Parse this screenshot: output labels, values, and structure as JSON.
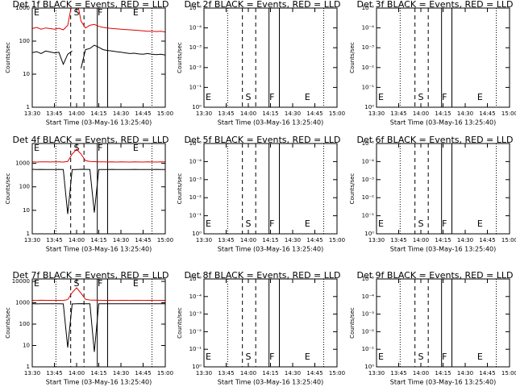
{
  "shared": {
    "xlabel": "Start Time (03-May-16 13:25:40)",
    "ylabel": "Counts/sec",
    "xticks": [
      "13:30",
      "13:45",
      "14:00",
      "14:15",
      "14:30",
      "14:45",
      "15:00"
    ],
    "xlim": [
      "13:30",
      "15:00"
    ],
    "lines": [
      {
        "time": "13:46",
        "style": "dotted"
      },
      {
        "time": "13:56",
        "style": "dashed"
      },
      {
        "time": "14:05",
        "style": "dashed"
      },
      {
        "time": "14:14",
        "style": "solid"
      },
      {
        "time": "14:21",
        "style": "solid"
      },
      {
        "time": "14:51",
        "style": "dotted"
      }
    ],
    "region_labels": [
      {
        "label": "E",
        "time": "13:33"
      },
      {
        "label": "S",
        "time": "14:00"
      },
      {
        "label": "F",
        "time": "14:16"
      },
      {
        "label": "E",
        "time": "14:40"
      }
    ],
    "x": [
      "13:30",
      "13:33",
      "13:36",
      "13:39",
      "13:42",
      "13:45",
      "13:48",
      "13:51",
      "13:54",
      "13:57",
      "14:00",
      "14:03",
      "14:06",
      "14:09",
      "14:12",
      "14:15",
      "14:18",
      "14:21",
      "14:24",
      "14:27",
      "14:30",
      "14:33",
      "14:36",
      "14:39",
      "14:42",
      "14:45",
      "14:48",
      "14:51",
      "14:54",
      "14:57",
      "15:00"
    ]
  },
  "chart_data": [
    {
      "type": "line",
      "title": "Det 1f BLACK = Events, RED = LLD",
      "log_y": true,
      "ylim": [
        1,
        1000
      ],
      "yticks": [
        1,
        10,
        100,
        1000
      ],
      "region_label_side": "top",
      "series": [
        {
          "name": "Events",
          "color": "#000000",
          "values": [
            45,
            48,
            42,
            50,
            47,
            44,
            46,
            20,
            40,
            50,
            null,
            15,
            55,
            60,
            75,
            65,
            55,
            52,
            50,
            48,
            46,
            44,
            42,
            43,
            41,
            40,
            42,
            40,
            39,
            40,
            38
          ]
        },
        {
          "name": "LLD",
          "color": "#e00000",
          "values": [
            240,
            260,
            230,
            250,
            240,
            230,
            245,
            220,
            300,
            1500,
            2000,
            400,
            250,
            300,
            320,
            280,
            260,
            250,
            240,
            235,
            230,
            225,
            220,
            215,
            210,
            205,
            200,
            200,
            195,
            200,
            190
          ]
        }
      ]
    },
    {
      "type": "line",
      "title": "Det 2f BLACK = Events, RED = LLD",
      "log_y": true,
      "ylim": [
        1,
        1e-05
      ],
      "region_label_side": "bottom",
      "series": [],
      "yticks": [
        {
          "value": 1,
          "label": "10⁰"
        },
        {
          "value": 0.1,
          "label": "10⁻¹"
        },
        {
          "value": 0.01,
          "label": "10⁻²"
        },
        {
          "value": 0.001,
          "label": "10⁻³"
        },
        {
          "value": 0.0001,
          "label": "10⁻⁴"
        },
        {
          "value": 1e-05,
          "label": "10⁻⁵"
        }
      ]
    },
    {
      "type": "line",
      "title": "Det 3f BLACK = Events, RED = LLD",
      "log_y": true,
      "ylim": [
        1,
        1e-05
      ],
      "region_label_side": "bottom",
      "series": [],
      "yticks": [
        {
          "value": 1,
          "label": "10⁰"
        },
        {
          "value": 0.1,
          "label": "10⁻¹"
        },
        {
          "value": 0.01,
          "label": "10⁻²"
        },
        {
          "value": 0.001,
          "label": "10⁻³"
        },
        {
          "value": 0.0001,
          "label": "10⁻⁴"
        },
        {
          "value": 1e-05,
          "label": "10⁻⁵"
        }
      ]
    },
    {
      "type": "line",
      "title": "Det 4f BLACK = Events, RED = LLD",
      "log_y": true,
      "ylim": [
        1,
        7000
      ],
      "yticks": [
        1,
        10,
        100,
        1000
      ],
      "region_label_side": "top",
      "series": [
        {
          "name": "Events",
          "color": "#000000",
          "values": [
            560,
            550,
            555,
            550,
            545,
            550,
            552,
            548,
            7,
            540,
            550,
            560,
            555,
            550,
            8,
            545,
            550,
            548,
            552,
            550,
            545,
            548,
            550,
            552,
            548,
            545,
            550,
            548,
            552,
            550,
            548
          ]
        },
        {
          "name": "LLD",
          "color": "#e00000",
          "values": [
            1150,
            1140,
            1160,
            1150,
            1145,
            1150,
            1155,
            1140,
            1200,
            2500,
            4000,
            2500,
            1300,
            1200,
            1180,
            1160,
            1150,
            1145,
            1150,
            1140,
            1150,
            1145,
            1140,
            1150,
            1145,
            1140,
            1150,
            1145,
            1140,
            1150,
            1145
          ]
        }
      ]
    },
    {
      "type": "line",
      "title": "Det 5f BLACK = Events, RED = LLD",
      "log_y": true,
      "ylim": [
        1,
        1e-05
      ],
      "region_label_side": "bottom",
      "series": [],
      "yticks": [
        {
          "value": 1,
          "label": "10⁰"
        },
        {
          "value": 0.1,
          "label": "10⁻¹"
        },
        {
          "value": 0.01,
          "label": "10⁻²"
        },
        {
          "value": 0.001,
          "label": "10⁻³"
        },
        {
          "value": 0.0001,
          "label": "10⁻⁴"
        },
        {
          "value": 1e-05,
          "label": "10⁻⁵"
        }
      ]
    },
    {
      "type": "line",
      "title": "Det 6f BLACK = Events, RED = LLD",
      "log_y": true,
      "ylim": [
        1,
        1e-05
      ],
      "region_label_side": "bottom",
      "series": [],
      "yticks": [
        {
          "value": 1,
          "label": "10⁰"
        },
        {
          "value": 0.1,
          "label": "10⁻¹"
        },
        {
          "value": 0.01,
          "label": "10⁻²"
        },
        {
          "value": 0.001,
          "label": "10⁻³"
        },
        {
          "value": 0.0001,
          "label": "10⁻⁴"
        },
        {
          "value": 1e-05,
          "label": "10⁻⁵"
        }
      ]
    },
    {
      "type": "line",
      "title": "Det 7f BLACK = Events, RED = LLD",
      "log_y": true,
      "ylim": [
        1,
        13000
      ],
      "yticks": [
        1,
        10,
        100,
        1000,
        10000
      ],
      "region_label_side": "top",
      "series": [
        {
          "name": "Events",
          "color": "#000000",
          "values": [
            900,
            890,
            905,
            900,
            895,
            900,
            898,
            890,
            8,
            880,
            900,
            910,
            905,
            900,
            5,
            895,
            900,
            898,
            902,
            900,
            895,
            898,
            900,
            902,
            898,
            895,
            900,
            898,
            902,
            900,
            898
          ]
        },
        {
          "name": "LLD",
          "color": "#e00000",
          "values": [
            1300,
            1290,
            1310,
            1300,
            1295,
            1300,
            1305,
            1290,
            1400,
            3000,
            5000,
            2800,
            1450,
            1350,
            1320,
            1310,
            1300,
            1295,
            1300,
            1290,
            1300,
            1295,
            1290,
            1300,
            1295,
            1290,
            1300,
            1295,
            1290,
            1300,
            1295
          ]
        }
      ]
    },
    {
      "type": "line",
      "title": "Det 8f BLACK = Events, RED = LLD",
      "log_y": true,
      "ylim": [
        1,
        1e-05
      ],
      "region_label_side": "bottom",
      "series": [],
      "yticks": [
        {
          "value": 1,
          "label": "10⁰"
        },
        {
          "value": 0.1,
          "label": "10⁻¹"
        },
        {
          "value": 0.01,
          "label": "10⁻²"
        },
        {
          "value": 0.001,
          "label": "10⁻³"
        },
        {
          "value": 0.0001,
          "label": "10⁻⁴"
        },
        {
          "value": 1e-05,
          "label": "10⁻⁵"
        }
      ]
    },
    {
      "type": "line",
      "title": "Det 9f BLACK = Events, RED = LLD",
      "log_y": true,
      "ylim": [
        1,
        1e-05
      ],
      "region_label_side": "bottom",
      "series": [],
      "yticks": [
        {
          "value": 1,
          "label": "10⁰"
        },
        {
          "value": 0.1,
          "label": "10⁻¹"
        },
        {
          "value": 0.01,
          "label": "10⁻²"
        },
        {
          "value": 0.001,
          "label": "10⁻³"
        },
        {
          "value": 0.0001,
          "label": "10⁻⁴"
        },
        {
          "value": 1e-05,
          "label": "10⁻⁵"
        }
      ]
    }
  ]
}
